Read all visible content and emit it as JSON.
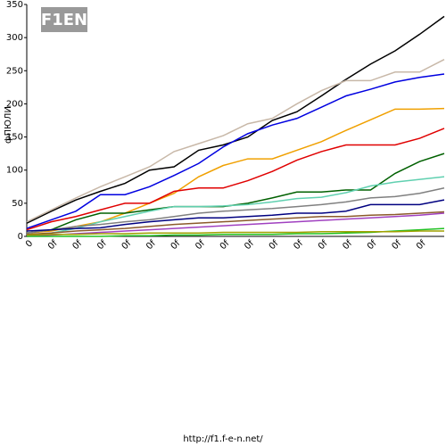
{
  "logo": "F1EN",
  "footer": "http://f1.f-e-n.net/",
  "chart_data": {
    "type": "line",
    "ylabel": "фПЮЛИ",
    "categories": [
      "0",
      "0f",
      "0f",
      "0f",
      "0f",
      "0f",
      "0f",
      "0f",
      "0f",
      "0f",
      "0f",
      "0f",
      "0f",
      "0f",
      "0f",
      "0f",
      "0f",
      null
    ],
    "ylim": [
      0,
      350
    ],
    "yticks": [
      0,
      50,
      100,
      150,
      200,
      250,
      300,
      350
    ],
    "grid": false,
    "series": [
      {
        "color": "#000000",
        "values": [
          20,
          38,
          55,
          68,
          80,
          100,
          105,
          130,
          138,
          150,
          175,
          188,
          212,
          237,
          260,
          280,
          305,
          332
        ]
      },
      {
        "color": "#c8b8a8",
        "values": [
          22,
          40,
          58,
          75,
          90,
          105,
          128,
          140,
          152,
          170,
          178,
          200,
          220,
          235,
          235,
          248,
          248,
          267
        ]
      },
      {
        "color": "#0000e0",
        "values": [
          12,
          25,
          38,
          63,
          63,
          75,
          92,
          110,
          135,
          155,
          168,
          178,
          195,
          212,
          222,
          233,
          240,
          245
        ]
      },
      {
        "color": "#f0a000",
        "values": [
          5,
          8,
          15,
          22,
          35,
          50,
          65,
          90,
          107,
          117,
          117,
          130,
          143,
          160,
          176,
          192,
          192,
          193
        ]
      },
      {
        "color": "#e00000",
        "values": [
          10,
          22,
          30,
          40,
          50,
          50,
          68,
          73,
          73,
          84,
          98,
          115,
          128,
          138,
          138,
          138,
          148,
          163
        ]
      },
      {
        "color": "#006000",
        "values": [
          5,
          10,
          25,
          35,
          35,
          40,
          45,
          45,
          45,
          50,
          58,
          67,
          67,
          70,
          70,
          95,
          113,
          125
        ]
      },
      {
        "color": "#60d0b0",
        "values": [
          2,
          5,
          12,
          22,
          30,
          38,
          45,
          45,
          46,
          48,
          52,
          57,
          59,
          66,
          76,
          82,
          86,
          90
        ]
      },
      {
        "color": "#808080",
        "values": [
          5,
          10,
          15,
          18,
          22,
          25,
          30,
          35,
          38,
          40,
          42,
          45,
          48,
          52,
          58,
          60,
          65,
          73
        ]
      },
      {
        "color": "#000080",
        "values": [
          8,
          10,
          12,
          13,
          18,
          22,
          25,
          28,
          28,
          30,
          32,
          35,
          35,
          38,
          48,
          48,
          48,
          55
        ]
      },
      {
        "color": "#a040c0",
        "values": [
          0,
          2,
          4,
          6,
          8,
          10,
          12,
          14,
          16,
          18,
          20,
          22,
          24,
          26,
          28,
          30,
          32,
          35
        ]
      },
      {
        "color": "#8b5a2b",
        "values": [
          3,
          5,
          8,
          10,
          12,
          15,
          18,
          20,
          22,
          24,
          26,
          28,
          30,
          30,
          32,
          33,
          35,
          37
        ]
      },
      {
        "color": "#20c020",
        "values": [
          0,
          0,
          0,
          0,
          1,
          1,
          2,
          2,
          3,
          3,
          3,
          4,
          4,
          5,
          6,
          8,
          10,
          12
        ]
      },
      {
        "color": "#a0a000",
        "values": [
          2,
          3,
          3,
          4,
          4,
          5,
          5,
          5,
          6,
          6,
          6,
          6,
          7,
          7,
          7,
          7,
          8,
          8
        ]
      }
    ]
  }
}
